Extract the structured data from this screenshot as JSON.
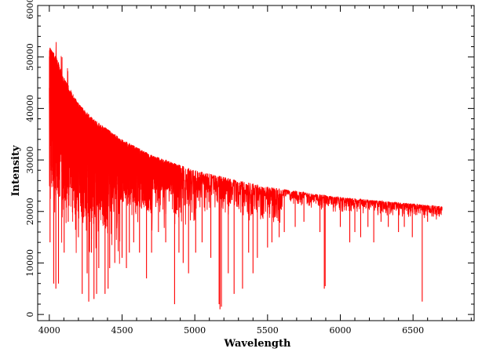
{
  "chart_data": {
    "type": "line",
    "title": "",
    "xlabel": "Wavelength",
    "ylabel": "Intensity",
    "xlim": [
      3920,
      6920
    ],
    "ylim": [
      -1200,
      60000
    ],
    "x_ticks": [
      4000,
      4500,
      5000,
      5500,
      6000,
      6500
    ],
    "y_ticks": [
      0,
      10000,
      20000,
      30000,
      40000,
      50000,
      60000
    ],
    "grid": false,
    "legend": "none",
    "series": [
      {
        "name": "",
        "color": "#ff0000",
        "continuum": {
          "x": [
            4000,
            4050,
            4100,
            4200,
            4300,
            4500,
            4700,
            5000,
            5300,
            5500,
            5800,
            6000,
            6300,
            6500,
            6700
          ],
          "y": [
            52000,
            50000,
            46000,
            41000,
            38000,
            34000,
            31000,
            28000,
            26000,
            24800,
            23500,
            22800,
            22000,
            21500,
            21000
          ]
        },
        "absorption_lines": [
          {
            "x": 4005,
            "y": 14000
          },
          {
            "x": 4030,
            "y": 6000
          },
          {
            "x": 4045,
            "y": 5000
          },
          {
            "x": 4063,
            "y": 6000
          },
          {
            "x": 4102,
            "y": 12000
          },
          {
            "x": 4130,
            "y": 18000
          },
          {
            "x": 4200,
            "y": 15000
          },
          {
            "x": 4226,
            "y": 4000
          },
          {
            "x": 4260,
            "y": 8000
          },
          {
            "x": 4271,
            "y": 2500
          },
          {
            "x": 4290,
            "y": 12000
          },
          {
            "x": 4307,
            "y": 3000
          },
          {
            "x": 4325,
            "y": 4000
          },
          {
            "x": 4340,
            "y": 9000
          },
          {
            "x": 4383,
            "y": 4000
          },
          {
            "x": 4404,
            "y": 5000
          },
          {
            "x": 4415,
            "y": 9000
          },
          {
            "x": 4450,
            "y": 10000
          },
          {
            "x": 4500,
            "y": 11000
          },
          {
            "x": 4530,
            "y": 9000
          },
          {
            "x": 4550,
            "y": 12000
          },
          {
            "x": 4580,
            "y": 14000
          },
          {
            "x": 4620,
            "y": 12000
          },
          {
            "x": 4668,
            "y": 7000
          },
          {
            "x": 4703,
            "y": 12000
          },
          {
            "x": 4750,
            "y": 16000
          },
          {
            "x": 4800,
            "y": 14000
          },
          {
            "x": 4861,
            "y": 2000
          },
          {
            "x": 4891,
            "y": 12000
          },
          {
            "x": 4920,
            "y": 10000
          },
          {
            "x": 4957,
            "y": 8000
          },
          {
            "x": 5006,
            "y": 12000
          },
          {
            "x": 5050,
            "y": 14000
          },
          {
            "x": 5110,
            "y": 11000
          },
          {
            "x": 5167,
            "y": 2000
          },
          {
            "x": 5173,
            "y": 1000
          },
          {
            "x": 5183,
            "y": 1500
          },
          {
            "x": 5230,
            "y": 8000
          },
          {
            "x": 5270,
            "y": 4000
          },
          {
            "x": 5328,
            "y": 5000
          },
          {
            "x": 5370,
            "y": 12000
          },
          {
            "x": 5400,
            "y": 8000
          },
          {
            "x": 5430,
            "y": 11000
          },
          {
            "x": 5500,
            "y": 13000
          },
          {
            "x": 5530,
            "y": 14000
          },
          {
            "x": 5580,
            "y": 15000
          },
          {
            "x": 5615,
            "y": 16000
          },
          {
            "x": 5690,
            "y": 17000
          },
          {
            "x": 5750,
            "y": 18000
          },
          {
            "x": 5860,
            "y": 16000
          },
          {
            "x": 5890,
            "y": 5000
          },
          {
            "x": 5896,
            "y": 5500
          },
          {
            "x": 6000,
            "y": 17000
          },
          {
            "x": 6065,
            "y": 14000
          },
          {
            "x": 6100,
            "y": 16000
          },
          {
            "x": 6140,
            "y": 15000
          },
          {
            "x": 6190,
            "y": 17000
          },
          {
            "x": 6230,
            "y": 14000
          },
          {
            "x": 6280,
            "y": 18000
          },
          {
            "x": 6330,
            "y": 17000
          },
          {
            "x": 6400,
            "y": 16000
          },
          {
            "x": 6440,
            "y": 17000
          },
          {
            "x": 6495,
            "y": 15000
          },
          {
            "x": 6563,
            "y": 2500
          },
          {
            "x": 6600,
            "y": 18000
          },
          {
            "x": 6640,
            "y": 19000
          },
          {
            "x": 6680,
            "y": 19000
          }
        ]
      }
    ]
  }
}
